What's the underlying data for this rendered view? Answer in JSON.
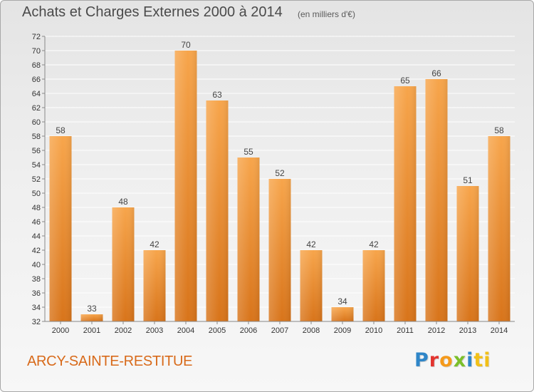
{
  "header": {
    "title": "Achats et Charges Externes 2000 à 2014",
    "unit": "(en milliers d'€)"
  },
  "footer": {
    "commune": "ARCY-SAINTE-RESTITUE",
    "logo_letters": [
      "P",
      "r",
      "o",
      "x",
      "i",
      "ti"
    ]
  },
  "colors": {
    "bar_top": "#f7a54b",
    "bar_bottom": "#d8741a",
    "axis": "#888888",
    "grid": "#ffffff",
    "commune_text": "#d86a1a"
  },
  "chart_data": {
    "type": "bar",
    "title": "Achats et Charges Externes 2000 à 2014",
    "subtitle": "(en milliers d'€)",
    "categories": [
      "2000",
      "2001",
      "2002",
      "2003",
      "2004",
      "2005",
      "2006",
      "2007",
      "2008",
      "2009",
      "2010",
      "2011",
      "2012",
      "2013",
      "2014"
    ],
    "values": [
      58,
      33,
      48,
      42,
      70,
      63,
      55,
      52,
      42,
      34,
      42,
      65,
      66,
      51,
      58
    ],
    "ylim": [
      32,
      72
    ],
    "ytick_step": 2,
    "grid": true,
    "data_labels": true
  }
}
